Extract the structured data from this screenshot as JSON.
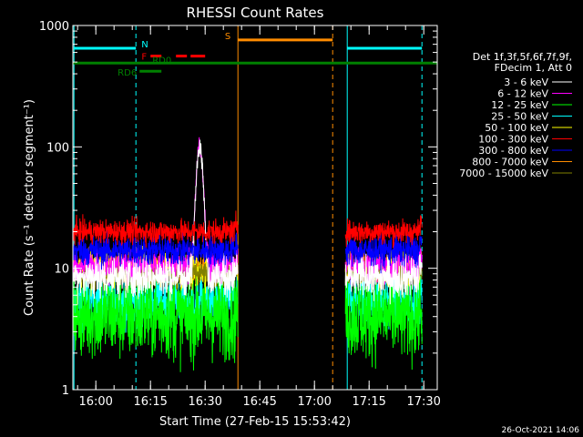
{
  "chart_data": {
    "type": "line",
    "title": "RHESSI Count Rates",
    "xlabel": "Start Time (27-Feb-15 15:53:42)",
    "ylabel": "Count Rate (s⁻¹ detector segment⁻¹)",
    "y_scale": "log",
    "ylim": [
      1,
      1000
    ],
    "xlim": [
      "15:53:42",
      "17:33:42"
    ],
    "x_ticks": [
      "16:00",
      "16:15",
      "16:30",
      "16:45",
      "17:00",
      "17:15",
      "17:30"
    ],
    "y_ticks": [
      "1",
      "10",
      "100",
      "1000"
    ],
    "legend_position": "right",
    "legend_header": [
      "Det 1f,3f,5f,6f,7f,9f,",
      "FDecim 1, Att 0"
    ],
    "series": [
      {
        "name": "3 - 6 keV",
        "color": "#ffffff",
        "level": 8.5,
        "noise": 0.12
      },
      {
        "name": "6 - 12 keV",
        "color": "#ff00ff",
        "level": 10.5,
        "noise": 0.1
      },
      {
        "name": "12 - 25 keV",
        "color": "#00ff00",
        "level": 4.0,
        "noise": 0.25
      },
      {
        "name": "25 - 50 keV",
        "color": "#00ffff",
        "level": 5.5,
        "noise": 0.15
      },
      {
        "name": "50 - 100 keV",
        "color": "#ffff00",
        "level": 9.5,
        "noise": 0.1
      },
      {
        "name": "100 - 300 keV",
        "color": "#ff0000",
        "level": 20,
        "noise": 0.07
      },
      {
        "name": "300 - 800 keV",
        "color": "#0000ff",
        "level": 14,
        "noise": 0.09
      },
      {
        "name": "800 - 7000 keV",
        "color": "#ff8c00",
        "level": 10,
        "noise": 0.09
      },
      {
        "name": "7000 - 15000 keV",
        "color": "#808000",
        "level": 9,
        "noise": 0.07
      }
    ],
    "data_segments": [
      [
        "15:53:42",
        "16:39:00"
      ],
      [
        "17:08:30",
        "17:29:30"
      ]
    ],
    "peak": {
      "time": "16:28:30",
      "series": [
        "3 - 6 keV",
        "6 - 12 keV"
      ],
      "value": 120
    },
    "vertical_markers": [
      {
        "time": "15:54:00",
        "color": "#00ffff",
        "style": "solid"
      },
      {
        "time": "16:11:00",
        "color": "#00ffff",
        "style": "dashed"
      },
      {
        "time": "16:39:00",
        "color": "#ff8c00",
        "style": "solid"
      },
      {
        "time": "17:05:00",
        "color": "#ff8c00",
        "style": "dashed"
      },
      {
        "time": "17:09:00",
        "color": "#00ffff",
        "style": "solid"
      },
      {
        "time": "17:29:30",
        "color": "#00ffff",
        "style": "dashed"
      }
    ],
    "flag_bars": [
      {
        "label": "N",
        "color": "#00ffff",
        "segments": [
          [
            "15:54:00",
            "16:11:00"
          ],
          [
            "17:09:00",
            "17:29:30"
          ]
        ],
        "value": 650
      },
      {
        "label": "S",
        "color": "#ff8c00",
        "segments": [
          [
            "16:39:00",
            "17:05:00"
          ]
        ],
        "value": 760
      },
      {
        "label": "F",
        "color": "#ff0000",
        "segments": [
          [
            "16:15:00",
            "16:18:00"
          ],
          [
            "16:22:00",
            "16:25:00"
          ],
          [
            "16:26:00",
            "16:30:00"
          ]
        ],
        "value": 560
      },
      {
        "label": "RD0",
        "color": "#008000",
        "segments": [
          [
            "15:53:42",
            "17:33:42"
          ]
        ],
        "value": 490
      },
      {
        "label": "RD6",
        "color": "#008000",
        "segments": [
          [
            "16:12:00",
            "16:18:00"
          ]
        ],
        "value": 420
      }
    ]
  },
  "footer": {
    "timestamp": "26-Oct-2021 14:06"
  }
}
